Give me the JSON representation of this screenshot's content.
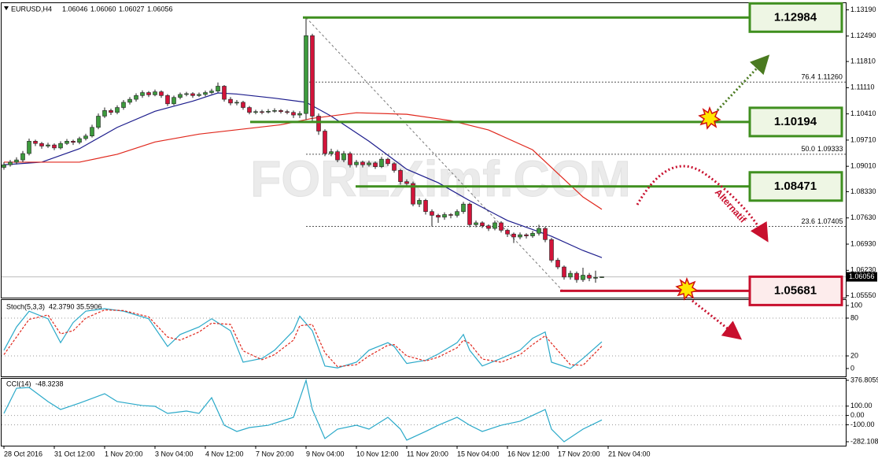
{
  "chart_data": {
    "type": "candlestick",
    "title": "EURUSD,H4",
    "ohlc": [
      1.06046,
      {
        "value": 1.0606,
        "label": "1.06060"
      },
      1.06027,
      1.06056
    ],
    "up_color": "#3d9a3d",
    "down_color": "#d2143a",
    "ylim": [
      1.055,
      1.1339
    ],
    "yticks": [
      {
        "value": 1.1319,
        "label": "1.13190"
      },
      {
        "value": 1.1249,
        "label": "1.12490"
      },
      {
        "value": 1.1181,
        "label": "1.11810"
      },
      {
        "value": 1.1111,
        "label": "1.11110"
      },
      {
        "value": 1.1041,
        "label": "1.10410"
      },
      {
        "value": 1.0971,
        "label": "1.09710"
      },
      {
        "value": 1.0901,
        "label": "1.09010"
      },
      {
        "value": 1.0833,
        "label": "1.08330"
      },
      {
        "value": 1.0763,
        "label": "1.07630"
      },
      {
        "value": 1.0693,
        "label": "1.06930"
      },
      {
        "value": 1.0623,
        "label": "1.06230"
      },
      {
        "value": 1.0555,
        "label": "1.05550"
      }
    ],
    "x_labels": [
      "28 Oct 2016",
      "31 Oct 12:00",
      "1 Nov 20:00",
      "3 Nov 04:00",
      "4 Nov 12:00",
      "7 Nov 20:00",
      "9 Nov 04:00",
      "10 Nov 12:00",
      "11 Nov 20:00",
      "15 Nov 04:00",
      "16 Nov 12:00",
      "17 Nov 20:00",
      "21 Nov 04:00"
    ],
    "candles": [
      [
        1.0898,
        1.0912,
        1.0892,
        1.0905
      ],
      [
        1.0905,
        1.0918,
        1.09,
        1.0912
      ],
      [
        1.0912,
        1.0925,
        1.0906,
        1.0918
      ],
      [
        1.0918,
        1.0942,
        1.0912,
        1.0935
      ],
      [
        1.0935,
        1.0975,
        1.093,
        1.0968
      ],
      [
        1.0968,
        1.0972,
        1.0955,
        1.0962
      ],
      [
        1.0962,
        1.0966,
        1.0948,
        1.0955
      ],
      [
        1.0955,
        1.0964,
        1.095,
        1.0958
      ],
      [
        1.0958,
        1.0962,
        1.0944,
        1.095
      ],
      [
        1.095,
        1.0968,
        1.0946,
        1.0962
      ],
      [
        1.0962,
        1.0974,
        1.0958,
        1.0968
      ],
      [
        1.0968,
        1.0972,
        1.0958,
        1.0965
      ],
      [
        1.0965,
        1.098,
        1.096,
        1.0975
      ],
      [
        1.0975,
        1.0988,
        1.097,
        1.0982
      ],
      [
        1.0982,
        1.1012,
        1.0978,
        1.1005
      ],
      [
        1.1005,
        1.1042,
        1.1,
        1.1035
      ],
      [
        1.1035,
        1.1058,
        1.103,
        1.105
      ],
      [
        1.105,
        1.1055,
        1.1038,
        1.1045
      ],
      [
        1.1045,
        1.1064,
        1.104,
        1.1058
      ],
      [
        1.1058,
        1.1078,
        1.1052,
        1.1072
      ],
      [
        1.1072,
        1.1086,
        1.1066,
        1.108
      ],
      [
        1.108,
        1.1096,
        1.1074,
        1.109
      ],
      [
        1.109,
        1.1104,
        1.1084,
        1.1098
      ],
      [
        1.1098,
        1.1102,
        1.1086,
        1.1092
      ],
      [
        1.1092,
        1.1106,
        1.1088,
        1.11
      ],
      [
        1.11,
        1.1104,
        1.1084,
        1.109
      ],
      [
        1.109,
        1.1094,
        1.1062,
        1.1068
      ],
      [
        1.1068,
        1.109,
        1.1064,
        1.1085
      ],
      [
        1.1085,
        1.1098,
        1.108,
        1.1093
      ],
      [
        1.1093,
        1.11,
        1.1088,
        1.1095
      ],
      [
        1.1095,
        1.1099,
        1.1084,
        1.109
      ],
      [
        1.109,
        1.1098,
        1.1086,
        1.1093
      ],
      [
        1.1093,
        1.1103,
        1.1088,
        1.1098
      ],
      [
        1.1098,
        1.1108,
        1.1094,
        1.1102
      ],
      [
        1.1102,
        1.1125,
        1.1098,
        1.1115
      ],
      [
        1.1115,
        1.1118,
        1.1074,
        1.108
      ],
      [
        1.108,
        1.1086,
        1.1064,
        1.107
      ],
      [
        1.107,
        1.1078,
        1.1064,
        1.1072
      ],
      [
        1.1072,
        1.1076,
        1.1052,
        1.1058
      ],
      [
        1.1058,
        1.1062,
        1.104,
        1.1045
      ],
      [
        1.1045,
        1.1052,
        1.104,
        1.1047
      ],
      [
        1.1047,
        1.1052,
        1.104,
        1.1046
      ],
      [
        1.1046,
        1.1054,
        1.1042,
        1.1048
      ],
      [
        1.1048,
        1.1056,
        1.1044,
        1.105
      ],
      [
        1.105,
        1.1054,
        1.1042,
        1.1047
      ],
      [
        1.1047,
        1.1052,
        1.104,
        1.1045
      ],
      [
        1.1045,
        1.105,
        1.103,
        1.1038
      ],
      [
        1.1038,
        1.1048,
        1.103,
        1.1042
      ],
      [
        1.1042,
        1.1298,
        1.1025,
        1.125
      ],
      [
        1.125,
        1.1255,
        1.102,
        1.1035
      ],
      [
        1.1035,
        1.1042,
        1.0985,
        1.0995
      ],
      [
        1.0995,
        1.1,
        1.0928,
        1.0935
      ],
      [
        1.0935,
        1.0948,
        1.0928,
        1.094
      ],
      [
        1.094,
        1.0945,
        1.0912,
        1.0918
      ],
      [
        1.0918,
        1.0942,
        1.0912,
        1.0935
      ],
      [
        1.0935,
        1.094,
        1.0898,
        1.0905
      ],
      [
        1.0905,
        1.0918,
        1.0898,
        1.0912
      ],
      [
        1.0912,
        1.0916,
        1.0898,
        1.0905
      ],
      [
        1.0905,
        1.0916,
        1.09,
        1.091
      ],
      [
        1.091,
        1.0914,
        1.0894,
        1.09
      ],
      [
        1.09,
        1.0926,
        1.0896,
        1.092
      ],
      [
        1.092,
        1.0924,
        1.0902,
        1.0908
      ],
      [
        1.0908,
        1.0912,
        1.0884,
        1.089
      ],
      [
        1.089,
        1.0894,
        1.0852,
        1.086
      ],
      [
        1.086,
        1.0866,
        1.0848,
        1.0855
      ],
      [
        1.0855,
        1.086,
        1.0794,
        1.08
      ],
      [
        1.08,
        1.0816,
        1.0792,
        1.081
      ],
      [
        1.081,
        1.0814,
        1.0772,
        1.078
      ],
      [
        1.078,
        1.0786,
        1.074,
        1.077
      ],
      [
        1.077,
        1.0774,
        1.075,
        1.0765
      ],
      [
        1.0765,
        1.0778,
        1.0758,
        1.0772
      ],
      [
        1.0772,
        1.0776,
        1.0762,
        1.077
      ],
      [
        1.077,
        1.0786,
        1.0764,
        1.078
      ],
      [
        1.078,
        1.0806,
        1.0774,
        1.08
      ],
      [
        1.08,
        1.0804,
        1.0738,
        1.0745
      ],
      [
        1.0745,
        1.0756,
        1.0738,
        1.075
      ],
      [
        1.075,
        1.0754,
        1.0736,
        1.0742
      ],
      [
        1.0742,
        1.0746,
        1.0728,
        1.0735
      ],
      [
        1.0735,
        1.0756,
        1.073,
        1.075
      ],
      [
        1.075,
        1.0754,
        1.0724,
        1.073
      ],
      [
        1.073,
        1.0734,
        1.0712,
        1.072
      ],
      [
        1.072,
        1.0724,
        1.0696,
        1.0712
      ],
      [
        1.0712,
        1.0724,
        1.0706,
        1.0718
      ],
      [
        1.0718,
        1.0722,
        1.0708,
        1.0715
      ],
      [
        1.0715,
        1.0728,
        1.071,
        1.0722
      ],
      [
        1.0722,
        1.0745,
        1.0716,
        1.0735
      ],
      [
        1.0735,
        1.074,
        1.0698,
        1.0705
      ],
      [
        1.0705,
        1.071,
        1.0644,
        1.065
      ],
      [
        1.065,
        1.0656,
        1.0626,
        1.0632
      ],
      [
        1.0632,
        1.0636,
        1.0598,
        1.0605
      ],
      [
        1.0605,
        1.0622,
        1.0598,
        1.0615
      ],
      [
        1.0615,
        1.062,
        1.059,
        1.0598
      ],
      [
        1.0598,
        1.063,
        1.0592,
        1.061
      ],
      [
        1.061,
        1.0616,
        1.0594,
        1.0602
      ],
      [
        1.0602,
        1.0622,
        1.059,
        1.0604
      ],
      [
        1.06046,
        1.0606,
        1.06027,
        1.06056
      ]
    ],
    "lines": [
      {
        "color": "#1c1c8c",
        "x": [
          0,
          6,
          12,
          18,
          24,
          30,
          34,
          37,
          43,
          48,
          52,
          58,
          64,
          69,
          74,
          80,
          87,
          92,
          95
        ],
        "values": [
          1.0905,
          1.0912,
          1.0948,
          1.1005,
          1.1048,
          1.1075,
          1.1097,
          1.1094,
          1.1083,
          1.1072,
          1.1035,
          1.0968,
          1.0893,
          1.0857,
          1.0809,
          1.0756,
          1.0714,
          1.0676,
          1.0657
        ]
      },
      {
        "color": "#e0271c",
        "x": [
          0,
          12,
          18,
          24,
          31,
          44,
          49,
          56,
          64,
          71,
          77,
          84,
          92,
          95
        ],
        "values": [
          1.0912,
          1.0912,
          1.0933,
          1.0966,
          1.0987,
          1.1012,
          1.1029,
          1.1044,
          1.104,
          1.1023,
          1.0998,
          1.0945,
          1.0819,
          1.0786
        ]
      }
    ],
    "levels": [
      {
        "value": 1.12984,
        "color": "#3f8f1f"
      },
      {
        "value": 1.10194,
        "color": "#3f8f1f"
      },
      {
        "value": 1.08471,
        "color": "#3f8f1f"
      },
      {
        "value": 1.05681,
        "color": "#c8102e"
      }
    ],
    "fibo": [
      {
        "ratio": 76.4,
        "price": {
          "value": 1.1126,
          "label": "1.11260"
        }
      },
      {
        "ratio": {
          "value": 50,
          "label": "50.0"
        },
        "price": 1.09333
      },
      {
        "ratio": 23.6,
        "price": 1.07405
      }
    ],
    "annotation": "Alternatif",
    "watermark": "FOREXimf.COM",
    "stoch": {
      "title": "Stoch(5,3,3)",
      "readout": [
        {
          "value": 42.379,
          "label": "42.3790"
        },
        35.5906
      ],
      "ylim": [
        -12.5,
        108.75
      ],
      "yticks": [
        100,
        80,
        20,
        0
      ],
      "series": [
        {
          "color": "#2aa9c9",
          "x": [
            0,
            2,
            4,
            7,
            9,
            11,
            13,
            16,
            19,
            23,
            26,
            28,
            31,
            33,
            36,
            38,
            41,
            43,
            46,
            47,
            49,
            51,
            53,
            56,
            58,
            61,
            62,
            64,
            67,
            69,
            72,
            73,
            74,
            76,
            79,
            82,
            84,
            86,
            87,
            90,
            92,
            95
          ],
          "values": [
            29,
            66,
            91,
            79,
            41,
            73,
            91,
            95,
            91,
            79,
            35,
            54,
            66,
            79,
            60,
            10,
            16,
            29,
            60,
            83,
            60,
            4,
            1,
            10,
            29,
            41,
            35,
            8,
            13,
            23,
            41,
            54,
            29,
            4,
            16,
            29,
            48,
            58,
            10,
            0,
            16,
            42.379
          ]
        },
        {
          "color": "#e0271c",
          "dash": true,
          "x": [
            0,
            2,
            4,
            7,
            9,
            11,
            13,
            16,
            19,
            23,
            26,
            28,
            31,
            33,
            36,
            38,
            41,
            43,
            46,
            47,
            49,
            51,
            53,
            56,
            58,
            61,
            62,
            64,
            67,
            69,
            72,
            73,
            74,
            76,
            79,
            82,
            84,
            86,
            87,
            90,
            92,
            95
          ],
          "values": [
            22,
            50,
            78,
            85,
            55,
            60,
            80,
            93,
            92,
            82,
            50,
            45,
            58,
            72,
            70,
            28,
            14,
            22,
            45,
            68,
            70,
            25,
            3,
            6,
            20,
            37,
            38,
            20,
            12,
            18,
            33,
            45,
            40,
            15,
            10,
            22,
            38,
            52,
            40,
            6,
            5,
            35.5906
          ]
        }
      ]
    },
    "cci": {
      "title": "CCI(14)",
      "readout": -48.3238,
      "ylim": [
        -324.3,
        393.7
      ],
      "yticks": [
        376.8059,
        {
          "value": 100,
          "label": "100.00"
        },
        {
          "value": 0,
          "label": "0.00"
        },
        {
          "value": -100,
          "label": "-100.00"
        },
        -282.1084
      ],
      "series": [
        {
          "color": "#2aa9c9",
          "x": [
            0,
            2,
            4,
            7,
            9,
            12,
            16,
            18,
            22,
            24,
            26,
            29,
            31,
            33,
            35,
            37,
            39,
            42,
            46,
            48,
            49,
            51,
            53,
            56,
            58,
            61,
            63,
            64,
            67,
            69,
            72,
            74,
            76,
            79,
            82,
            86,
            87,
            89,
            92,
            95
          ],
          "values": [
            22,
            292,
            300,
            149,
            64,
            132,
            233,
            149,
            106,
            98,
            22,
            47,
            22,
            191,
            -105,
            -172,
            -130,
            -105,
            -20,
            376.8059,
            64,
            -248,
            -147,
            -105,
            -147,
            -20,
            -147,
            -265,
            -172,
            -105,
            -20,
            -105,
            -172,
            -105,
            -62,
            64,
            -147,
            -282.1084,
            -147,
            -48.3238
          ]
        }
      ]
    }
  }
}
